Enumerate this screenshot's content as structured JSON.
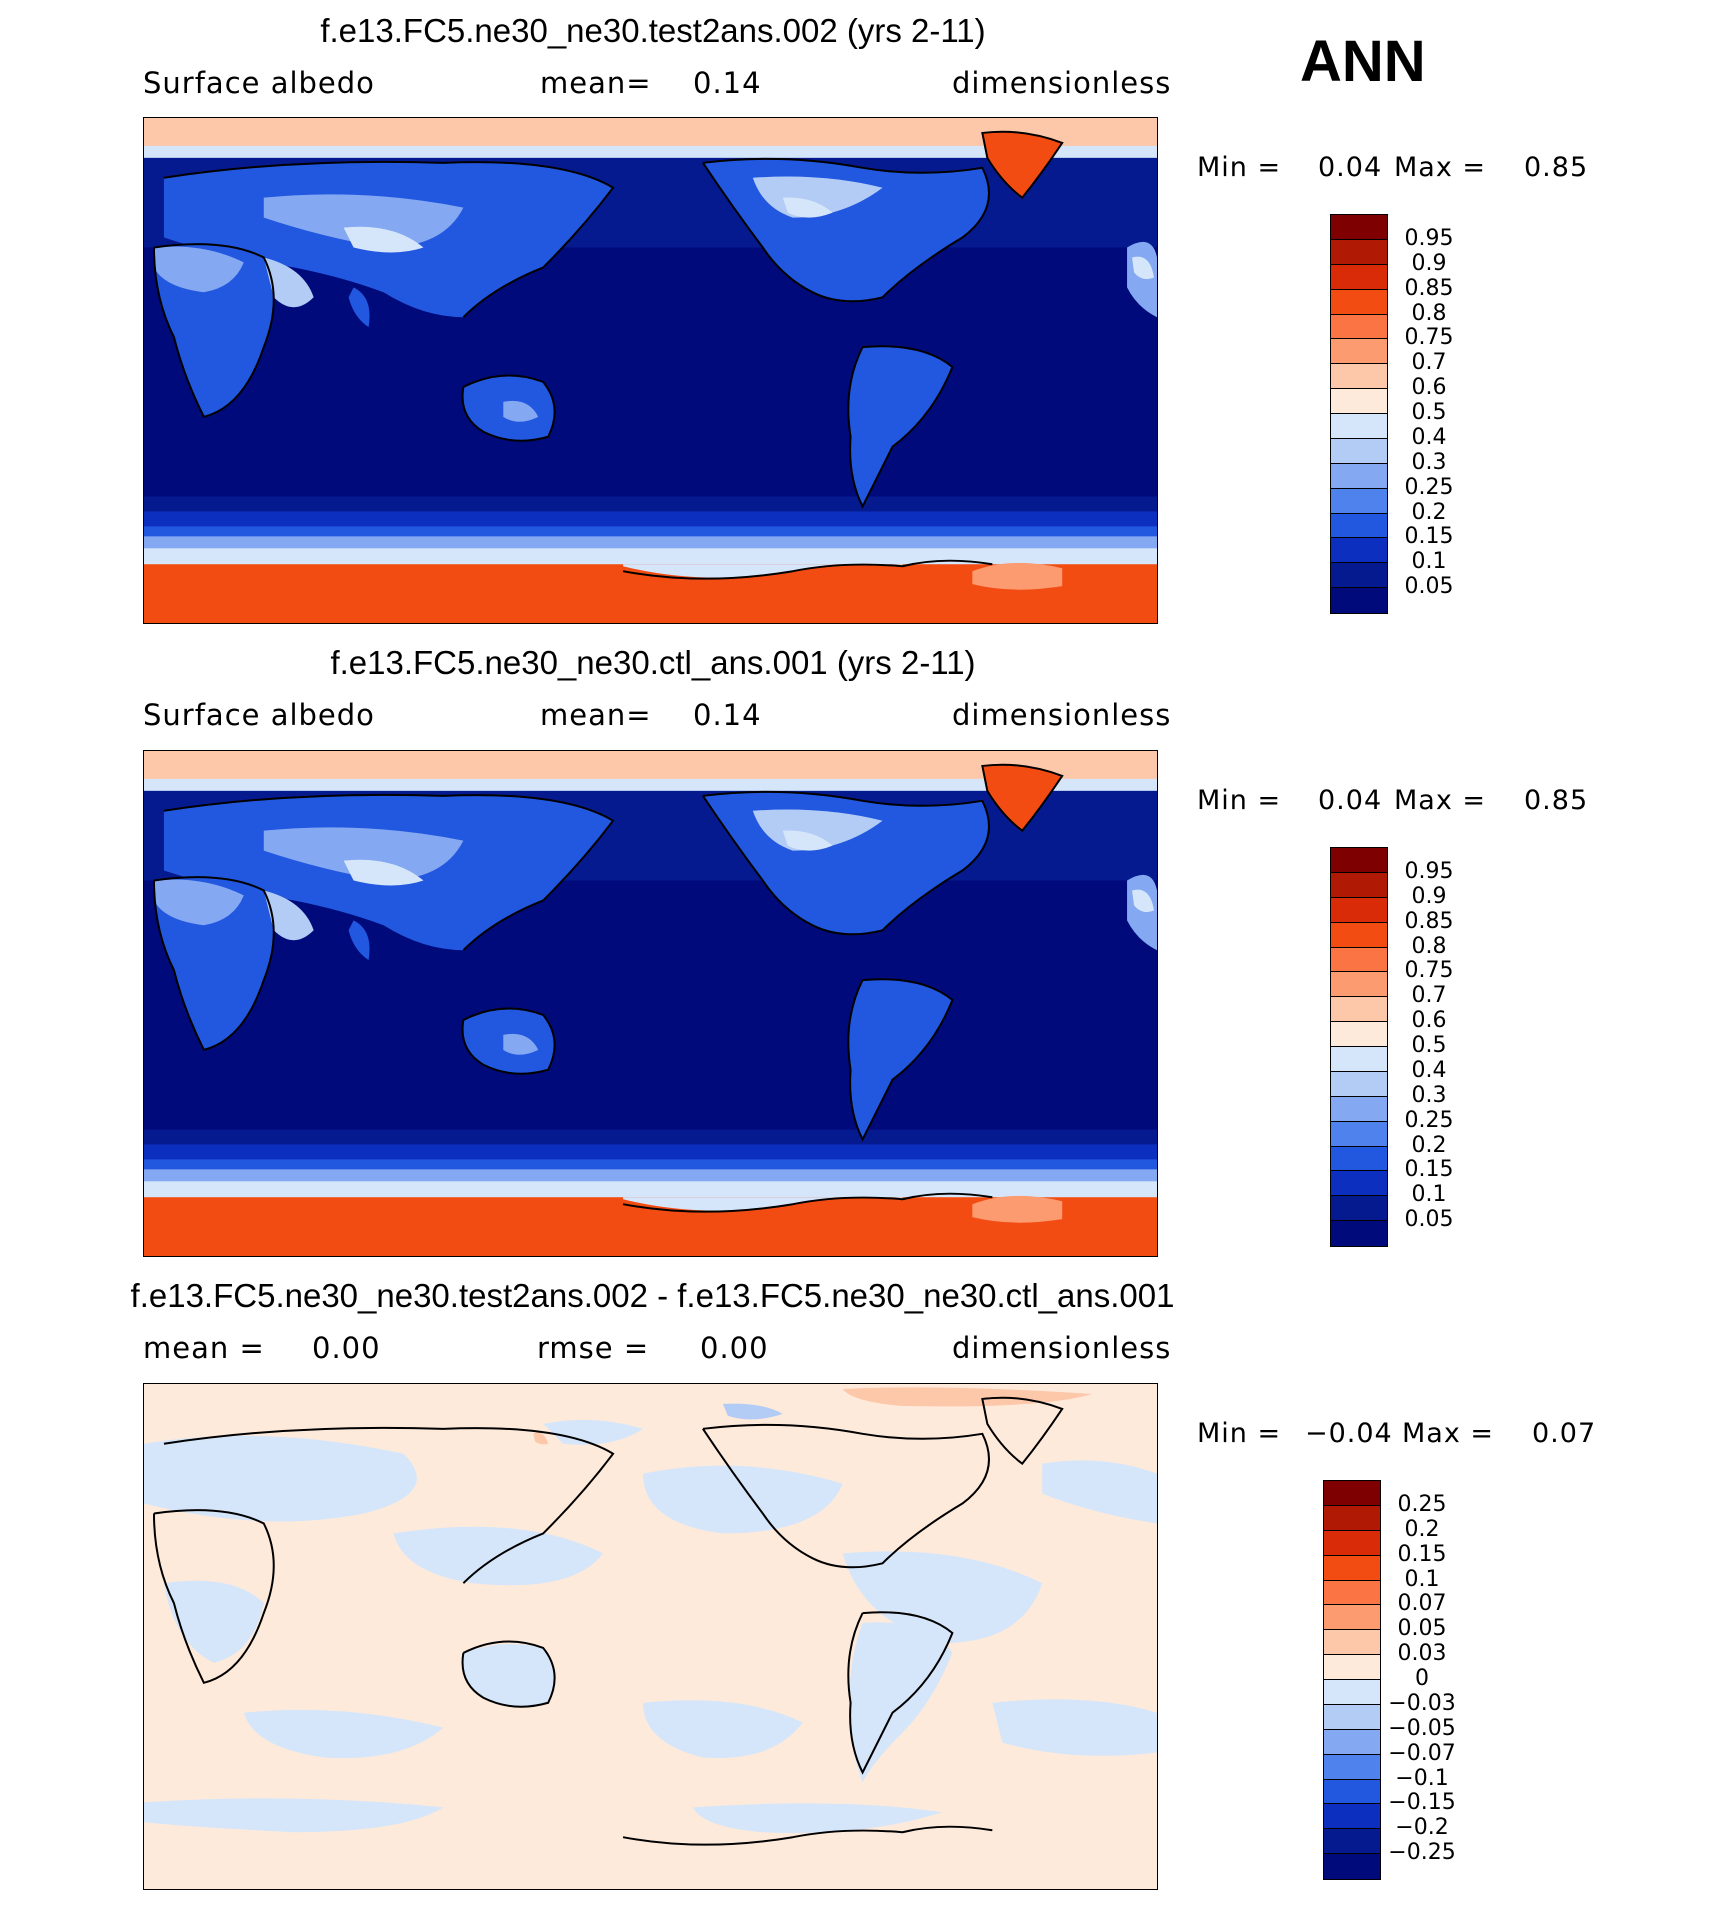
{
  "season": "ANN",
  "panels": [
    {
      "title": "f.e13.FC5.ne30_ne30.test2ans.002 (yrs 2-11)",
      "left_label": "Surface albedo",
      "mid_label": "mean=",
      "mid_value": "0.14",
      "right_label": "dimensionless",
      "min_label": "Min =",
      "min_value": "0.04",
      "max_label": "Max =",
      "max_value": "0.85",
      "colorbar": [
        "0.95",
        "0.9",
        "0.85",
        "0.8",
        "0.75",
        "0.7",
        "0.6",
        "0.5",
        "0.4",
        "0.3",
        "0.25",
        "0.2",
        "0.15",
        "0.1",
        "0.05"
      ],
      "colors": [
        "#7f0000",
        "#b01a05",
        "#d92b08",
        "#f24c12",
        "#fa7444",
        "#fc9a70",
        "#fdc7a9",
        "#feeadb",
        "#d5e6fa",
        "#b2ccf5",
        "#84a8f1",
        "#4f82ec",
        "#2257e0",
        "#0c2fbf",
        "#061a8f",
        "#000a7a"
      ]
    },
    {
      "title": "f.e13.FC5.ne30_ne30.ctl_ans.001 (yrs 2-11)",
      "left_label": "Surface albedo",
      "mid_label": "mean=",
      "mid_value": "0.14",
      "right_label": "dimensionless",
      "min_label": "Min =",
      "min_value": "0.04",
      "max_label": "Max =",
      "max_value": "0.85",
      "colorbar": [
        "0.95",
        "0.9",
        "0.85",
        "0.8",
        "0.75",
        "0.7",
        "0.6",
        "0.5",
        "0.4",
        "0.3",
        "0.25",
        "0.2",
        "0.15",
        "0.1",
        "0.05"
      ],
      "colors": [
        "#7f0000",
        "#b01a05",
        "#d92b08",
        "#f24c12",
        "#fa7444",
        "#fc9a70",
        "#fdc7a9",
        "#feeadb",
        "#d5e6fa",
        "#b2ccf5",
        "#84a8f1",
        "#4f82ec",
        "#2257e0",
        "#0c2fbf",
        "#061a8f",
        "#000a7a"
      ]
    },
    {
      "title": "f.e13.FC5.ne30_ne30.test2ans.002 - f.e13.FC5.ne30_ne30.ctl_ans.001",
      "left_label": "mean =",
      "left_value": "0.00",
      "mid_label": "rmse =",
      "mid_value": "0.00",
      "right_label": "dimensionless",
      "min_label": "Min =",
      "min_value": "−0.04",
      "max_label": "Max =",
      "max_value": "0.07",
      "colorbar": [
        "0.25",
        "0.2",
        "0.15",
        "0.1",
        "0.07",
        "0.05",
        "0.03",
        "0",
        "−0.03",
        "−0.05",
        "−0.07",
        "−0.1",
        "−0.15",
        "−0.2",
        "−0.25"
      ],
      "colors": [
        "#7f0000",
        "#b01a05",
        "#d92b08",
        "#f24c12",
        "#fa7444",
        "#fc9a70",
        "#fdc7a9",
        "#feeadb",
        "#d5e6fa",
        "#b2ccf5",
        "#84a8f1",
        "#4f82ec",
        "#2257e0",
        "#0c2fbf",
        "#061a8f",
        "#000a7a"
      ]
    }
  ]
}
